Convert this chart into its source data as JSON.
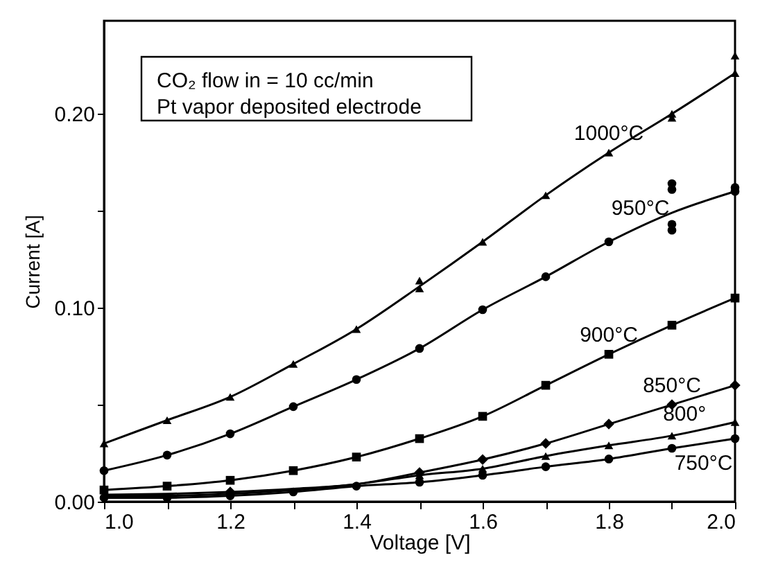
{
  "chart_data": {
    "type": "line",
    "xlabel": "Voltage [V]",
    "ylabel": "Current [A]",
    "x": [
      1.0,
      1.1,
      1.2,
      1.3,
      1.4,
      1.5,
      1.6,
      1.7,
      1.8,
      1.9,
      2.0
    ],
    "xlim": [
      1.0,
      2.0
    ],
    "ylim": [
      0,
      0.248
    ],
    "xticks": [
      {
        "value": 1.0,
        "label": "1.0"
      },
      {
        "value": 1.1,
        "label": null
      },
      {
        "value": 1.2,
        "label": "1.2"
      },
      {
        "value": 1.3,
        "label": null
      },
      {
        "value": 1.4,
        "label": "1.4"
      },
      {
        "value": 1.5,
        "label": null
      },
      {
        "value": 1.6,
        "label": "1.6"
      },
      {
        "value": 1.7,
        "label": null
      },
      {
        "value": 1.8,
        "label": "1.8"
      },
      {
        "value": 1.9,
        "label": null
      },
      {
        "value": 2.0,
        "label": "2.0"
      }
    ],
    "yticks": [
      {
        "value": 0,
        "label": "0.00"
      },
      {
        "value": 0.05,
        "label": null
      },
      {
        "value": 0.1,
        "label": "0.10"
      },
      {
        "value": 0.15,
        "label": null
      },
      {
        "value": 0.2,
        "label": "0.20"
      }
    ],
    "grid": false,
    "series": [
      {
        "marker": "none",
        "color": "#000000",
        "values": [
          0.03,
          0.042,
          0.054,
          0.071,
          0.089,
          0.111,
          0.134,
          0.158,
          0.18,
          0.2,
          0.221
        ]
      },
      {
        "type": "scatter",
        "marker": "triangle",
        "color": "#000000",
        "x": [
          1.0,
          1.1,
          1.2,
          1.3,
          1.4,
          1.5,
          1.5,
          1.6,
          1.7,
          1.8,
          1.9,
          1.9,
          2.0,
          2.0
        ],
        "values": [
          0.03,
          0.042,
          0.054,
          0.071,
          0.089,
          0.11,
          0.114,
          0.134,
          0.158,
          0.18,
          0.198,
          0.2,
          0.221,
          0.23
        ]
      },
      {
        "marker": "none",
        "color": "#000000",
        "values": [
          0.016,
          0.024,
          0.035,
          0.049,
          0.063,
          0.079,
          0.099,
          0.116,
          0.134,
          0.149,
          0.16
        ]
      },
      {
        "type": "scatter",
        "marker": "circle",
        "color": "#000000",
        "x": [
          1.0,
          1.1,
          1.2,
          1.3,
          1.4,
          1.5,
          1.6,
          1.7,
          1.8,
          1.9,
          1.9,
          1.9,
          1.9,
          2.0,
          2.0
        ],
        "values": [
          0.016,
          0.024,
          0.035,
          0.049,
          0.063,
          0.079,
          0.099,
          0.116,
          0.134,
          0.164,
          0.161,
          0.143,
          0.14,
          0.162,
          0.16
        ]
      },
      {
        "marker": "none",
        "color": "#000000",
        "values": [
          0.006,
          0.008,
          0.011,
          0.016,
          0.023,
          0.0325,
          0.044,
          0.06,
          0.076,
          0.091,
          0.105
        ]
      },
      {
        "type": "scatter",
        "marker": "square",
        "color": "#000000",
        "values": [
          0.006,
          0.008,
          0.011,
          0.016,
          0.023,
          0.0325,
          0.044,
          0.06,
          0.076,
          0.091,
          0.105
        ]
      },
      {
        "marker": "none",
        "color": "#000000",
        "values": [
          0.0036,
          0.004,
          0.005,
          0.0066,
          0.009,
          0.015,
          0.0217,
          0.03,
          0.04,
          0.05,
          0.06
        ]
      },
      {
        "type": "scatter",
        "marker": "diamond",
        "color": "#000000",
        "values": [
          null,
          null,
          0.005,
          null,
          null,
          0.015,
          0.0217,
          0.03,
          0.04,
          0.05,
          0.06
        ]
      },
      {
        "marker": "none",
        "color": "#000000",
        "values": [
          0.003,
          0.003,
          0.004,
          0.006,
          0.009,
          0.0136,
          0.017,
          0.0235,
          0.029,
          0.034,
          0.041
        ]
      },
      {
        "type": "scatter",
        "marker": "triangle",
        "color": "#000000",
        "values": [
          null,
          null,
          null,
          null,
          null,
          0.0136,
          0.017,
          0.0235,
          0.029,
          0.034,
          0.041
        ]
      },
      {
        "marker": "none",
        "color": "#000000",
        "values": [
          0.002,
          0.002,
          0.003,
          0.005,
          0.008,
          0.01,
          0.0136,
          0.018,
          0.022,
          0.0275,
          0.0325
        ]
      },
      {
        "type": "scatter",
        "marker": "circle",
        "color": "#000000",
        "values": [
          0.002,
          0.002,
          0.003,
          0.005,
          0.008,
          0.01,
          0.0136,
          0.018,
          0.022,
          0.0275,
          0.0325
        ]
      }
    ],
    "annotations": [
      "CO₂ flow in = 10 cc/min",
      "Pt vapor deposited electrode",
      {
        "text": "1000°C",
        "x": 1.8,
        "y": 0.18
      },
      {
        "text": "950°C",
        "x": 1.85,
        "y": 0.1415
      },
      {
        "text": "900°C",
        "x": 1.8,
        "y": 0.076
      },
      {
        "text": "850°C",
        "x": 1.9,
        "y": 0.05
      },
      {
        "text": "800°",
        "x": 1.92,
        "y": 0.0354
      },
      {
        "text": "750°C",
        "x": 1.95,
        "y": 0.03
      }
    ]
  }
}
